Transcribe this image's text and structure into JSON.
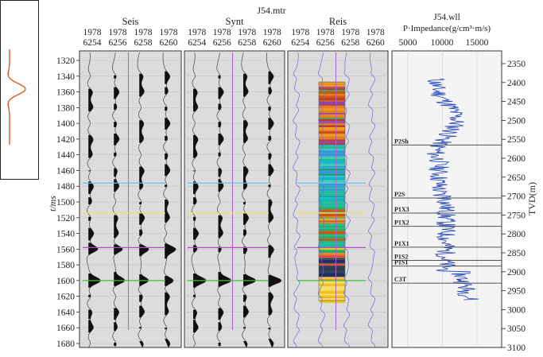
{
  "wavelet": {
    "label": "J54.mtr"
  },
  "panels": [
    {
      "title": "Seis"
    },
    {
      "title": "Synt"
    },
    {
      "title": "Reis"
    }
  ],
  "traces": [
    {
      "line": "1978",
      "cdp": "6254"
    },
    {
      "line": "1978",
      "cdp": "6256"
    },
    {
      "line": "1978",
      "cdp": "6258"
    },
    {
      "line": "1978",
      "cdp": "6260"
    }
  ],
  "well": {
    "title": "J54.wll",
    "curve_label": "P·Impedance(g/cm³·m/s)",
    "ticks": [
      "5000",
      "10000",
      "15000"
    ],
    "horizons": [
      {
        "name": "P2Sh",
        "depth": 2565
      },
      {
        "name": "P2S",
        "depth": 2705
      },
      {
        "name": "P1X3",
        "depth": 2745
      },
      {
        "name": "P1X2",
        "depth": 2780
      },
      {
        "name": "P1X1",
        "depth": 2835
      },
      {
        "name": "P1S2",
        "depth": 2870
      },
      {
        "name": "P1S1",
        "depth": 2885
      },
      {
        "name": "C3T",
        "depth": 2930
      }
    ]
  },
  "time_axis": {
    "label": "t/ms",
    "ticks": [
      "1320",
      "1340",
      "1360",
      "1380",
      "1400",
      "1420",
      "1440",
      "1460",
      "1480",
      "1500",
      "1520",
      "1540",
      "1560",
      "1580",
      "1600",
      "1620",
      "1640",
      "1660",
      "1680"
    ]
  },
  "depth_axis": {
    "label": "TVD(m)",
    "ticks": [
      "2350",
      "2400",
      "2450",
      "2500",
      "2550",
      "2600",
      "2650",
      "2700",
      "2750",
      "2800",
      "2850",
      "2900",
      "2950",
      "3000",
      "3050",
      "3100"
    ]
  },
  "colors": {
    "cyan_horizon": "#5ec8e8",
    "yellow_horizon": "#f0e060",
    "magenta_horizon": "#b050c0",
    "green_horizon": "#3cc03c",
    "trace_fill": "#111111",
    "impedance_curve": "#2244bb",
    "wavelet_curve": "#e05a20"
  }
}
